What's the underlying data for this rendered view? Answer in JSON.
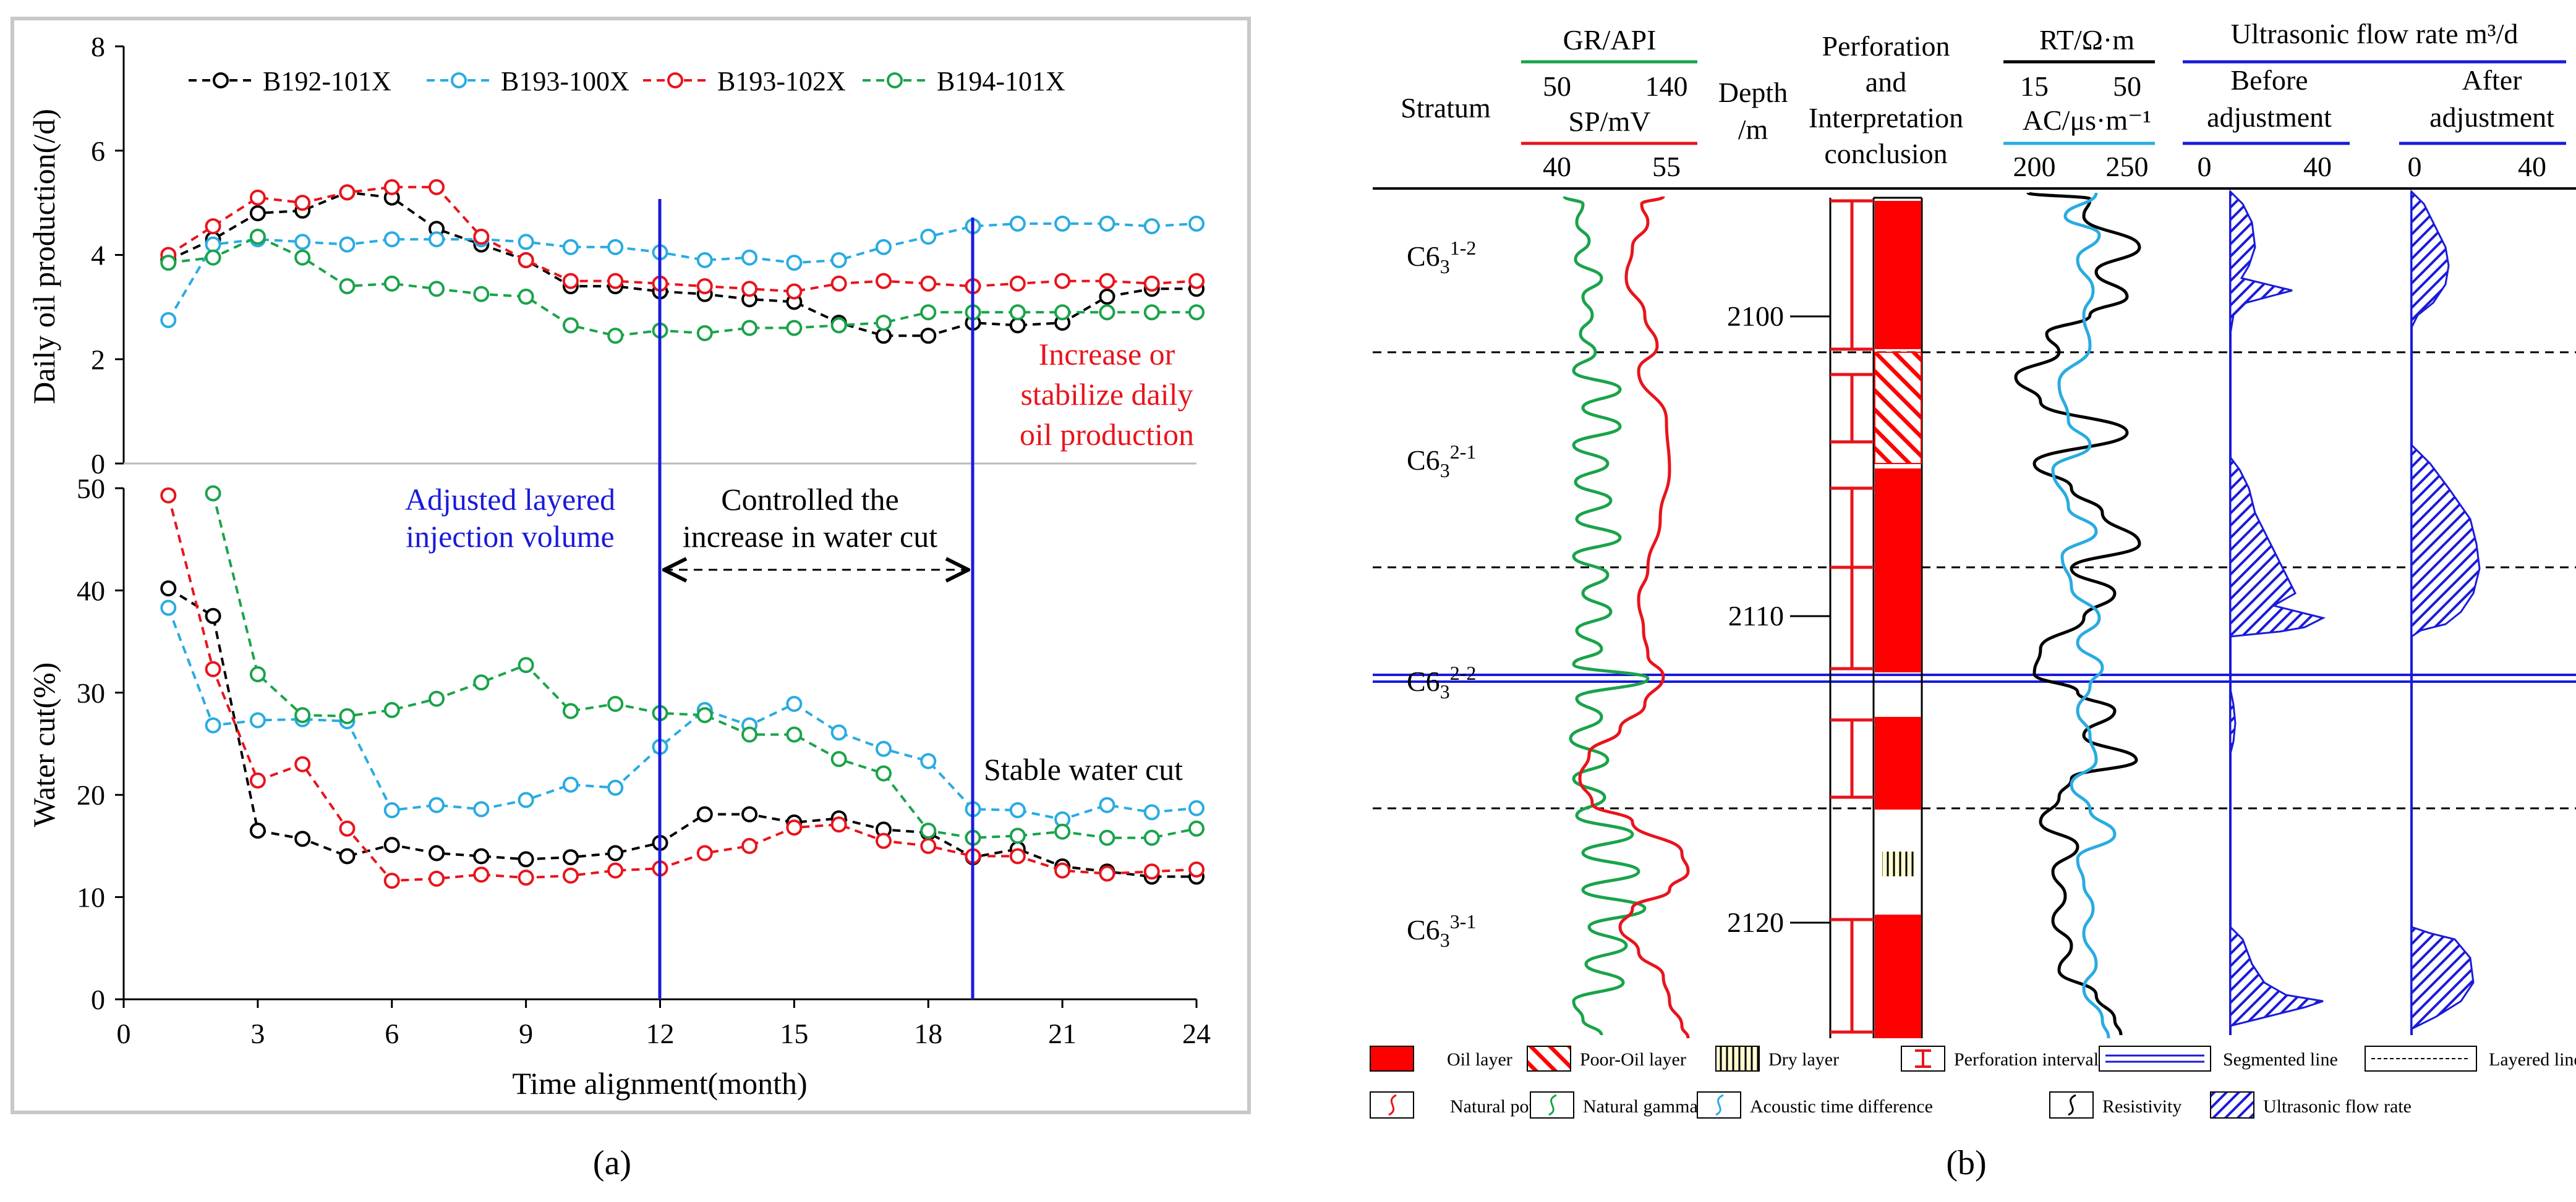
{
  "panel_a": {
    "caption": "(a)",
    "chart_data": [
      {
        "type": "line",
        "ylabel": "Daily oil production(/d)",
        "ylim": [
          0,
          8
        ],
        "yticks": [
          0,
          2,
          4,
          6,
          8
        ],
        "x": [
          1,
          2,
          3,
          4,
          5,
          6,
          7,
          8,
          9,
          10,
          11,
          12,
          13,
          14,
          15,
          16,
          17,
          18,
          19,
          20,
          21,
          22,
          23,
          24
        ],
        "series": [
          {
            "name": "B192-101X",
            "color": "#000000",
            "values": [
              3.9,
              4.3,
              4.8,
              4.85,
              5.2,
              5.1,
              4.5,
              4.2,
              3.9,
              3.4,
              3.4,
              3.3,
              3.25,
              3.15,
              3.1,
              2.7,
              2.45,
              2.45,
              2.7,
              2.65,
              2.7,
              3.2,
              3.35,
              3.35
            ]
          },
          {
            "name": "B193-100X",
            "color": "#29abe2",
            "values": [
              2.75,
              4.2,
              4.3,
              4.25,
              4.2,
              4.3,
              4.3,
              4.3,
              4.25,
              4.15,
              4.15,
              4.05,
              3.9,
              3.95,
              3.85,
              3.9,
              4.15,
              4.35,
              4.55,
              4.6,
              4.6,
              4.6,
              4.55,
              4.6
            ]
          },
          {
            "name": "B193-102X",
            "color": "#e8141c",
            "values": [
              4.0,
              4.55,
              5.1,
              5.0,
              5.2,
              5.3,
              5.3,
              4.35,
              3.9,
              3.5,
              3.5,
              3.45,
              3.4,
              3.35,
              3.3,
              3.45,
              3.5,
              3.45,
              3.4,
              3.45,
              3.5,
              3.5,
              3.45,
              3.5
            ]
          },
          {
            "name": "B194-101X",
            "color": "#1aa34a",
            "values": [
              3.85,
              3.95,
              4.35,
              3.95,
              3.4,
              3.45,
              3.35,
              3.25,
              3.2,
              2.65,
              2.45,
              2.55,
              2.5,
              2.6,
              2.6,
              2.65,
              2.7,
              2.9,
              2.9,
              2.9,
              2.9,
              2.9,
              2.9,
              2.9
            ]
          }
        ]
      },
      {
        "type": "line",
        "ylabel": "Water cut(%)",
        "xlabel": "Time alignment(month)",
        "ylim": [
          0,
          50
        ],
        "yticks": [
          0,
          10,
          20,
          30,
          40,
          50
        ],
        "xlim": [
          0,
          24
        ],
        "xticks": [
          0,
          3,
          6,
          9,
          12,
          15,
          18,
          21,
          24
        ],
        "x": [
          1,
          2,
          3,
          4,
          5,
          6,
          7,
          8,
          9,
          10,
          11,
          12,
          13,
          14,
          15,
          16,
          17,
          18,
          19,
          20,
          21,
          22,
          23,
          24
        ],
        "series": [
          {
            "name": "B192-101X",
            "color": "#000000",
            "values": [
              40.2,
              37.5,
              16.5,
              15.7,
              14.0,
              15.1,
              14.3,
              14.0,
              13.7,
              13.9,
              14.3,
              15.3,
              18.1,
              18.1,
              17.3,
              17.7,
              16.6,
              16.3,
              13.9,
              14.7,
              13.0,
              12.5,
              12.0,
              12.0
            ]
          },
          {
            "name": "B193-100X",
            "color": "#29abe2",
            "values": [
              38.3,
              26.8,
              27.3,
              27.4,
              27.2,
              18.5,
              19.0,
              18.6,
              19.5,
              21.0,
              20.7,
              24.7,
              28.3,
              26.8,
              28.9,
              26.1,
              24.5,
              23.3,
              18.6,
              18.5,
              17.6,
              19.0,
              18.3,
              18.7
            ]
          },
          {
            "name": "B193-102X",
            "color": "#e8141c",
            "values": [
              49.3,
              32.3,
              21.4,
              23.0,
              16.7,
              11.6,
              11.8,
              12.2,
              11.9,
              12.1,
              12.6,
              12.8,
              14.3,
              15.0,
              16.8,
              17.1,
              15.5,
              15.0,
              14.0,
              14.0,
              12.6,
              12.3,
              12.5,
              12.7
            ]
          },
          {
            "name": "B194-101X",
            "color": "#1aa34a",
            "values": [
              null,
              49.5,
              31.8,
              27.8,
              27.7,
              28.3,
              29.4,
              31.0,
              32.7,
              28.2,
              28.9,
              28.0,
              27.8,
              25.9,
              25.9,
              23.5,
              22.1,
              16.5,
              15.8,
              16.0,
              16.4,
              15.8,
              15.8,
              16.7
            ]
          }
        ]
      }
    ],
    "annotations": {
      "increase_line1": "Increase or",
      "increase_line2": "stabilize daily",
      "increase_line3": "oil production",
      "adjusted_line1": "Adjusted layered",
      "adjusted_line2": "injection volume",
      "controlled_line1": "Controlled the",
      "controlled_line2": "increase in water cut",
      "stable": "Stable water cut"
    },
    "colors": {
      "annotation_blue": "#1a1adb",
      "annotation_red": "#e8141c"
    }
  },
  "panel_b": {
    "caption": "(b)",
    "headers": {
      "stratum": "Stratum",
      "gr": "GR/API",
      "gr_min": "50",
      "gr_max": "140",
      "sp": "SP/mV",
      "sp_min": "40",
      "sp_max": "55",
      "depth_line1": "Depth",
      "depth_line2": "/m",
      "perf_line1": "Perforation",
      "perf_line2": "and",
      "perf_line3": "Interpretation",
      "perf_line4": "conclusion",
      "rt": "RT/Ω·m",
      "rt_min": "15",
      "rt_max": "50",
      "ac": "AC/μs·m⁻¹",
      "ac_min": "200",
      "ac_max": "250",
      "flow": "Ultrasonic flow rate  m³/d",
      "before_line1": "Before",
      "before_line2": "adjustment",
      "after_line1": "After",
      "after_line2": "adjustment",
      "flow_min": "0",
      "flow_max": "40"
    },
    "strata": [
      {
        "base": "C6",
        "sub": "3",
        "sup": "1-2"
      },
      {
        "base": "C6",
        "sub": "3",
        "sup": "2-1"
      },
      {
        "base": "C6",
        "sub": "3",
        "sup": "2-2"
      },
      {
        "base": "C6",
        "sub": "3",
        "sup": "3-1"
      }
    ],
    "depth_ticks": [
      "2100",
      "2110",
      "2120"
    ],
    "legend": {
      "oil": "Oil layer",
      "poor": "Poor-Oil layer",
      "dry": "Dry layer",
      "perf": "Perforation interval",
      "seg": "Segmented line",
      "layer": "Layered line",
      "sp": "Natural potential",
      "gr": "Natural gamma",
      "ac": "Acoustic time difference",
      "rt": "Resistivity",
      "flow": "Ultrasonic flow rate"
    },
    "colors": {
      "oil": "#ff0000",
      "gr": "#1aa34a",
      "sp": "#e8141c",
      "ac": "#29abe2",
      "rt": "#000000",
      "flow": "#1a1adb"
    }
  }
}
